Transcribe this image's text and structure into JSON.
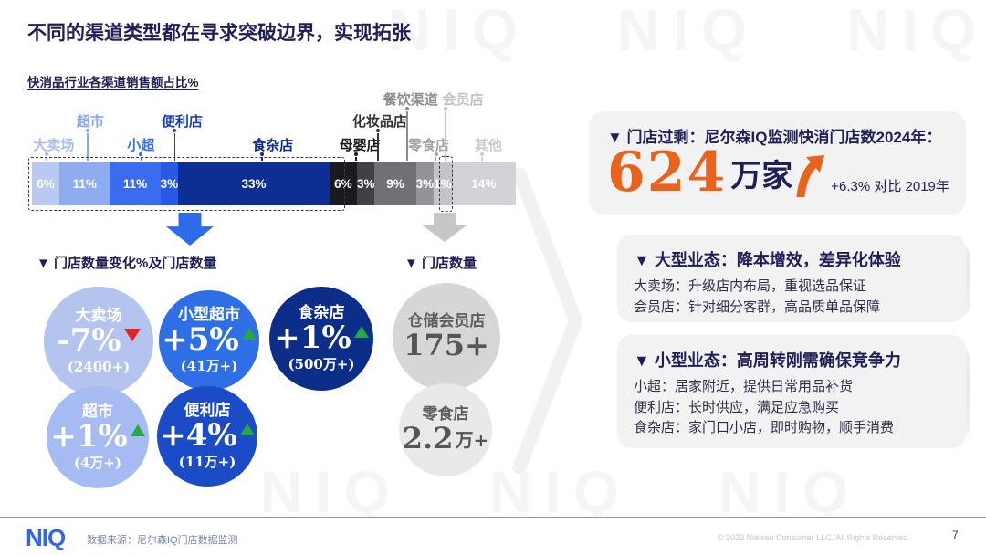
{
  "slide": {
    "title": "不同的渠道类型都在寻求突破边界，实现拓张",
    "watermark": "NIQ   NIQ   NIQ",
    "logo": "NIQ",
    "source": "数据来源：尼尔森IQ门店数据监测",
    "copyright": "© 2023 Nielsen Consumer LLC. All Rights Reserved.",
    "page_number": "7"
  },
  "chart_data": {
    "type": "bar",
    "stacked": true,
    "title": "快消品行业各渠道销售额占比%",
    "unit": "%",
    "segments": [
      {
        "label": "大卖场",
        "value": 6,
        "color": "#bac9f2",
        "label_color": "#aabeec"
      },
      {
        "label": "超市",
        "value": 11,
        "color": "#8fadee",
        "label_color": "#87a6ec"
      },
      {
        "label": "小超",
        "value": 11,
        "color": "#3b6cf0",
        "label_color": "#3b6cf0"
      },
      {
        "label": "便利店",
        "value": 3,
        "color": "#2858e6",
        "label_color": "#1d3fae"
      },
      {
        "label": "食杂店",
        "value": 33,
        "color": "#0d2e92",
        "label_color": "#0f2a84"
      },
      {
        "label": "母婴店",
        "value": 6,
        "color": "#1b1b1f",
        "label_color": "#1b1b1f"
      },
      {
        "label": "化妆品店",
        "value": 3,
        "color": "#414145",
        "label_color": "#333338"
      },
      {
        "label": "餐饮渠道",
        "value": 9,
        "color": "#717175",
        "label_color": "#8d8d91"
      },
      {
        "label": "零食店",
        "value": 3,
        "color": "#949498",
        "label_color": "#a3a3a7"
      },
      {
        "label": "会员店",
        "value": 1,
        "color": "#c4c4c8",
        "label_color": "#c1c1c5"
      },
      {
        "label": "其他",
        "value": 14,
        "color": "#d3d3d7",
        "label_color": "#cbcbcf"
      }
    ]
  },
  "store_change": {
    "heading": "▼  门店数量变化%及门店数量",
    "bubbles": [
      {
        "name": "大卖场",
        "change": "-7%",
        "count": "(2400+)",
        "direction": "down",
        "color": "#b4c4ef",
        "text": "light"
      },
      {
        "name": "小型超市",
        "change": "+5%",
        "count": "(41万+)",
        "direction": "up",
        "color": "#2e6fe6",
        "text": "light"
      },
      {
        "name": "食杂店",
        "change": "+1%",
        "count": "(500万+)",
        "direction": "up",
        "color": "#0c2d88",
        "text": "light"
      },
      {
        "name": "超市",
        "change": "+1%",
        "count": "(4万+)",
        "direction": "up",
        "color": "#a6bbf2",
        "text": "light"
      },
      {
        "name": "便利店",
        "change": "+4%",
        "count": "(11万+)",
        "direction": "up",
        "color": "#1c4bc8",
        "text": "light"
      }
    ]
  },
  "store_count": {
    "heading": "▼  门店数量",
    "bubbles": [
      {
        "name": "仓储会员店",
        "value": "175+",
        "suffix": "",
        "color": "#d6d6d6",
        "text": "gray"
      },
      {
        "name": "零食店",
        "value": "2.2",
        "suffix": "万+",
        "color": "#e9e9ea",
        "text": "gray"
      }
    ]
  },
  "insights": {
    "overview": {
      "title": "▼ 门店过剩：尼尔森IQ监测快消门店数2024年：",
      "big_number": "624",
      "big_unit": "万家",
      "delta": "+6.3% 对比 2019年"
    },
    "large_format": {
      "title": "▼ 大型业态：降本增效，差异化体验",
      "lines": [
        "大卖场：升级店内布局，重视选品保证",
        "会员店：针对细分客群，高品质单品保障"
      ]
    },
    "small_format": {
      "title": "▼ 小型业态：高周转刚需确保竞争力",
      "lines": [
        "小超：居家附近，提供日常用品补货",
        "便利店：长时供应，满足应急购买",
        "食杂店：家门口小店，即时购物，顺手消费"
      ]
    }
  }
}
